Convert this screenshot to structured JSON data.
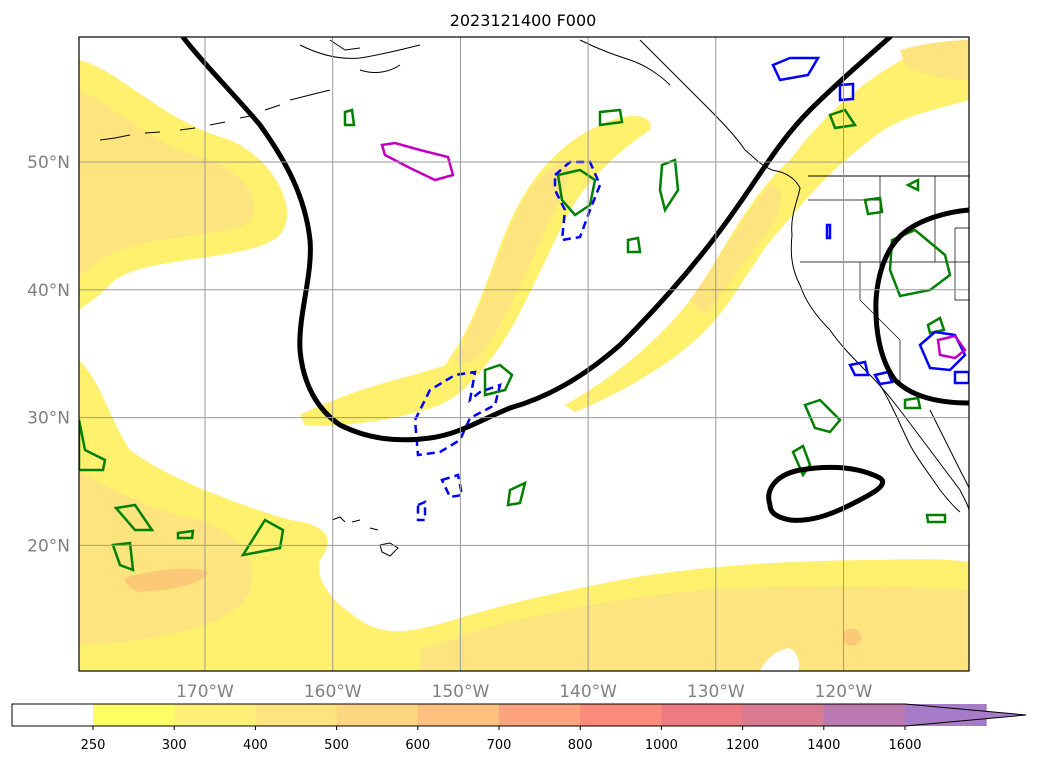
{
  "title": "2023121400 F000",
  "map": {
    "lat_ticks": [
      {
        "value": 50,
        "label": "50°N"
      },
      {
        "value": 40,
        "label": "40°N"
      },
      {
        "value": 30,
        "label": "30°N"
      },
      {
        "value": 20,
        "label": "20°N"
      }
    ],
    "lon_ticks": [
      {
        "value": -170,
        "label": "170°W"
      },
      {
        "value": -160,
        "label": "160°W"
      },
      {
        "value": -150,
        "label": "150°W"
      },
      {
        "value": -140,
        "label": "140°W"
      },
      {
        "value": -130,
        "label": "130°W"
      },
      {
        "value": -120,
        "label": "120°W"
      }
    ],
    "contour_colors": {
      "thick_line": "#000000",
      "green": "#008000",
      "blue": "#0000ff",
      "magenta": "#c000c0",
      "coast": "#000000"
    }
  },
  "colorbar": {
    "levels": [
      "250",
      "300",
      "400",
      "500",
      "600",
      "700",
      "800",
      "1000",
      "1200",
      "1400",
      "1600"
    ],
    "colors": [
      "#ffff66",
      "#fff07a",
      "#fde47e",
      "#fcd680",
      "#fdc07e",
      "#fda47c",
      "#fb8a7a",
      "#ee7b84",
      "#d97a90",
      "#bb7ab2",
      "#a67bc8"
    ],
    "below_color": "#ffffff",
    "extend": "max"
  }
}
